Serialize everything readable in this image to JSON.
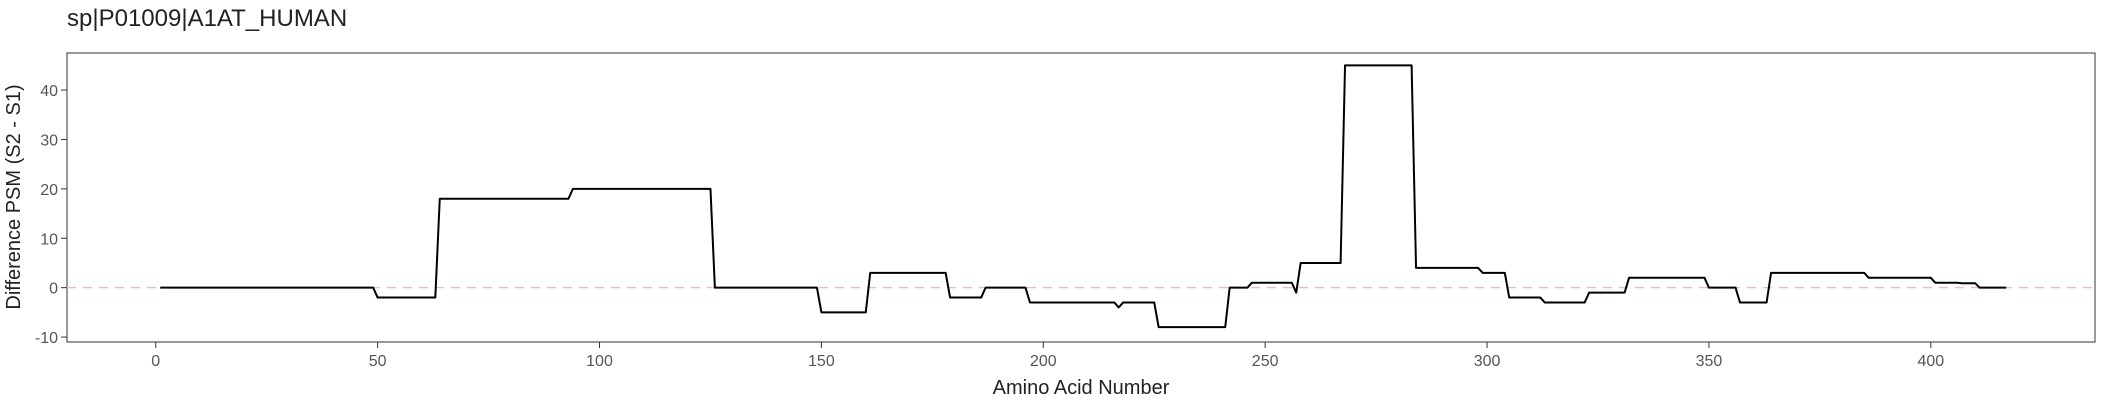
{
  "chart_data": {
    "type": "line",
    "title": "sp|P01009|A1AT_HUMAN",
    "xlabel": "Amino Acid Number",
    "ylabel": "Difference PSM (S2 - S1)",
    "xlim": [
      -20,
      437
    ],
    "ylim": [
      -11,
      47.5
    ],
    "x_ticks": [
      0,
      50,
      100,
      150,
      200,
      250,
      300,
      350,
      400
    ],
    "y_ticks": [
      -10,
      0,
      10,
      20,
      30,
      40
    ],
    "grid": false,
    "reference_line": {
      "y": 0,
      "style": "dashed",
      "color": "#f4b6c2"
    },
    "line_color": "#000000",
    "series": [
      {
        "x": [
          1,
          49,
          50,
          63,
          64,
          93,
          94,
          125,
          126,
          149,
          150,
          160,
          161,
          178,
          179,
          186,
          187,
          196,
          197,
          216,
          217,
          218,
          225,
          226,
          241,
          242,
          246,
          247,
          256,
          257,
          258,
          267,
          268,
          283,
          284,
          298,
          299,
          304,
          305,
          312,
          313,
          322,
          323,
          331,
          332,
          349,
          350,
          356,
          357,
          363,
          364,
          385,
          386,
          400,
          401,
          406,
          407,
          410,
          411,
          417
        ],
        "y": [
          0,
          0,
          -2,
          -2,
          18,
          18,
          20,
          20,
          0,
          0,
          -5,
          -5,
          3,
          3,
          -2,
          -2,
          0,
          0,
          -3,
          -3,
          -4,
          -3,
          -3,
          -8,
          -8,
          0,
          0,
          1,
          1,
          -1,
          5,
          5,
          45,
          45,
          4,
          4,
          3,
          3,
          -2,
          -2,
          -3,
          -3,
          -1,
          -1,
          2,
          2,
          0,
          0,
          -3,
          -3,
          3,
          3,
          2,
          2,
          1,
          1,
          0.9,
          0.9,
          0,
          0
        ]
      }
    ]
  }
}
